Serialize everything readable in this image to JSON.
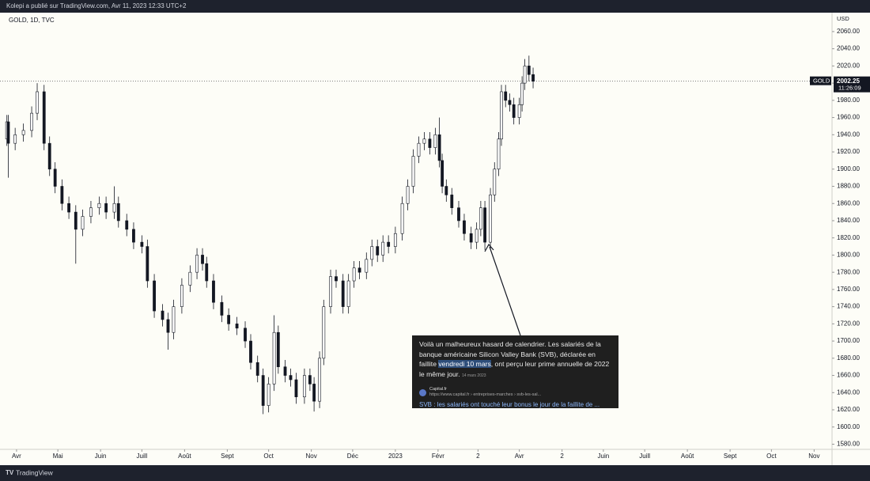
{
  "header": "Kolepi a publié sur TradingView.com, Avr 11, 2023 12:33 UTC+2",
  "footer": "TradingView",
  "chart_data": {
    "type": "candlestick",
    "symbol": "GOLD, 1D, TVC",
    "currency": "USD",
    "price_tag_label": "GOLD",
    "countdown": "11:26:09",
    "up_color": "#ffffff",
    "down_color": "#131722",
    "wick_color": "#131722",
    "xlim": [
      -12,
      592
    ],
    "ylim": [
      1574,
      2082
    ],
    "xticks": [
      {
        "value": 0,
        "label": "Avr"
      },
      {
        "value": 30,
        "label": "Mai"
      },
      {
        "value": 61,
        "label": "Juin"
      },
      {
        "value": 91,
        "label": "Juill"
      },
      {
        "value": 122,
        "label": "Août"
      },
      {
        "value": 153,
        "label": "Sept"
      },
      {
        "value": 183,
        "label": "Oct"
      },
      {
        "value": 214,
        "label": "Nov"
      },
      {
        "value": 244,
        "label": "Déc"
      },
      {
        "value": 275,
        "label": "2023"
      },
      {
        "value": 306,
        "label": "Févr"
      },
      {
        "value": 335,
        "label": "2"
      },
      {
        "value": 365,
        "label": "Avr"
      },
      {
        "value": 396,
        "label": "2"
      },
      {
        "value": 426,
        "label": "Juin"
      },
      {
        "value": 456,
        "label": "Juill"
      },
      {
        "value": 487,
        "label": "Août"
      },
      {
        "value": 518,
        "label": "Sept"
      },
      {
        "value": 548,
        "label": "Oct"
      },
      {
        "value": 579,
        "label": "Nov"
      }
    ],
    "yticks": [
      {
        "value": 1580,
        "label": "1580.00"
      },
      {
        "value": 1600,
        "label": "1600.00"
      },
      {
        "value": 1620,
        "label": "1620.00"
      },
      {
        "value": 1640,
        "label": "1640.00"
      },
      {
        "value": 1660,
        "label": "1660.00"
      },
      {
        "value": 1680,
        "label": "1680.00"
      },
      {
        "value": 1700,
        "label": "1700.00"
      },
      {
        "value": 1720,
        "label": "1720.00"
      },
      {
        "value": 1740,
        "label": "1740.00"
      },
      {
        "value": 1760,
        "label": "1760.00"
      },
      {
        "value": 1780,
        "label": "1780.00"
      },
      {
        "value": 1800,
        "label": "1800.00"
      },
      {
        "value": 1820,
        "label": "1820.00"
      },
      {
        "value": 1840,
        "label": "1840.00"
      },
      {
        "value": 1860,
        "label": "1860.00"
      },
      {
        "value": 1880,
        "label": "1880.00"
      },
      {
        "value": 1900,
        "label": "1900.00"
      },
      {
        "value": 1920,
        "label": "1920.00"
      },
      {
        "value": 1940,
        "label": "1940.00"
      },
      {
        "value": 1960,
        "label": "1960.00"
      },
      {
        "value": 1980,
        "label": "1980.00"
      },
      {
        "value": 2000,
        "label": "2000.00"
      },
      {
        "value": 2020,
        "label": "2020.00"
      },
      {
        "value": 2040,
        "label": "2040.00"
      },
      {
        "value": 2060,
        "label": "2060.00"
      }
    ],
    "x": [
      -7,
      -6,
      -1,
      5,
      11,
      15,
      20,
      24,
      28,
      33,
      38,
      43,
      48,
      54,
      60,
      65,
      71,
      74,
      80,
      85,
      91,
      95,
      100,
      106,
      110,
      114,
      120,
      126,
      131,
      135,
      138,
      143,
      149,
      154,
      160,
      166,
      170,
      175,
      179,
      183,
      187,
      190,
      195,
      199,
      203,
      209,
      213,
      216,
      220,
      223,
      228,
      232,
      237,
      241,
      245,
      249,
      254,
      258,
      262,
      266,
      270,
      275,
      280,
      284,
      288,
      292,
      296,
      300,
      304,
      307,
      309,
      312,
      316,
      321,
      325,
      330,
      334,
      337,
      340,
      344,
      347,
      350,
      352,
      355,
      358,
      361,
      365,
      367,
      369,
      372,
      375
    ],
    "open": [
      1935,
      1955,
      1930,
      1940,
      1945,
      1965,
      1990,
      1930,
      1900,
      1880,
      1860,
      1850,
      1830,
      1845,
      1855,
      1860,
      1850,
      1860,
      1840,
      1830,
      1815,
      1810,
      1770,
      1735,
      1725,
      1710,
      1740,
      1765,
      1780,
      1800,
      1790,
      1770,
      1745,
      1730,
      1720,
      1715,
      1700,
      1675,
      1660,
      1625,
      1650,
      1710,
      1670,
      1660,
      1655,
      1635,
      1660,
      1650,
      1630,
      1680,
      1740,
      1775,
      1770,
      1740,
      1770,
      1785,
      1780,
      1795,
      1810,
      1800,
      1815,
      1810,
      1825,
      1860,
      1880,
      1915,
      1930,
      1935,
      1925,
      1940,
      1910,
      1880,
      1870,
      1855,
      1840,
      1825,
      1815,
      1830,
      1855,
      1815,
      1870,
      1900,
      1935,
      1990,
      1980,
      1975,
      1960,
      1975,
      2000,
      2020,
      2010
    ],
    "high": [
      1963,
      1963,
      1948,
      1953,
      1973,
      2000,
      1998,
      1938,
      1908,
      1888,
      1868,
      1858,
      1853,
      1863,
      1868,
      1868,
      1880,
      1868,
      1848,
      1838,
      1823,
      1818,
      1778,
      1743,
      1733,
      1748,
      1773,
      1788,
      1808,
      1808,
      1798,
      1778,
      1753,
      1738,
      1728,
      1723,
      1708,
      1683,
      1668,
      1658,
      1730,
      1718,
      1678,
      1668,
      1663,
      1668,
      1668,
      1658,
      1688,
      1748,
      1783,
      1783,
      1778,
      1778,
      1793,
      1793,
      1803,
      1818,
      1818,
      1823,
      1823,
      1833,
      1868,
      1888,
      1923,
      1938,
      1943,
      1943,
      1948,
      1960,
      1918,
      1888,
      1878,
      1863,
      1848,
      1833,
      1838,
      1863,
      1863,
      1878,
      1908,
      1943,
      1998,
      1998,
      1988,
      1983,
      1983,
      2008,
      2028,
      2032,
      2018
    ],
    "low": [
      1927,
      1890,
      1922,
      1932,
      1937,
      1957,
      1922,
      1892,
      1872,
      1852,
      1842,
      1790,
      1822,
      1837,
      1847,
      1842,
      1842,
      1832,
      1822,
      1807,
      1802,
      1762,
      1727,
      1717,
      1690,
      1702,
      1732,
      1757,
      1772,
      1782,
      1762,
      1737,
      1722,
      1712,
      1707,
      1692,
      1667,
      1652,
      1615,
      1617,
      1642,
      1662,
      1652,
      1647,
      1627,
      1627,
      1642,
      1618,
      1622,
      1672,
      1732,
      1762,
      1732,
      1732,
      1762,
      1772,
      1772,
      1787,
      1792,
      1792,
      1802,
      1802,
      1817,
      1852,
      1872,
      1907,
      1922,
      1917,
      1917,
      1902,
      1872,
      1862,
      1847,
      1832,
      1817,
      1807,
      1807,
      1822,
      1806,
      1807,
      1862,
      1892,
      1927,
      1972,
      1967,
      1952,
      1952,
      1967,
      1992,
      2002,
      1994
    ],
    "close": [
      1955,
      1930,
      1940,
      1945,
      1965,
      1990,
      1930,
      1900,
      1880,
      1860,
      1850,
      1830,
      1845,
      1855,
      1860,
      1850,
      1860,
      1840,
      1830,
      1815,
      1810,
      1770,
      1735,
      1725,
      1710,
      1740,
      1765,
      1780,
      1800,
      1790,
      1770,
      1745,
      1730,
      1720,
      1715,
      1700,
      1675,
      1660,
      1625,
      1650,
      1710,
      1670,
      1660,
      1655,
      1635,
      1660,
      1650,
      1630,
      1680,
      1740,
      1775,
      1770,
      1740,
      1770,
      1785,
      1780,
      1795,
      1810,
      1800,
      1815,
      1810,
      1825,
      1860,
      1880,
      1915,
      1930,
      1935,
      1925,
      1940,
      1910,
      1880,
      1870,
      1855,
      1840,
      1825,
      1815,
      1830,
      1855,
      1815,
      1870,
      1900,
      1935,
      1990,
      1980,
      1975,
      1960,
      1975,
      2000,
      2020,
      2010,
      2002.25
    ],
    "annotation": {
      "text_before": "Voilà un malheureux hasard de calendrier. Les salariés de la banque américaine Silicon Valley Bank (SVB), déclarée en faillite ",
      "highlight": "vendredi 10 mars",
      "text_after": ", ont perçu leur prime annuelle de 2022 le même jour.",
      "date": "14 mars 2023",
      "source": "Capital.fr",
      "url": "https://www.capital.fr › entreprises-marches › svb-les-sal...",
      "link": "SVB : les salariés ont touché leur bonus le jour de la faillite de ..."
    }
  }
}
